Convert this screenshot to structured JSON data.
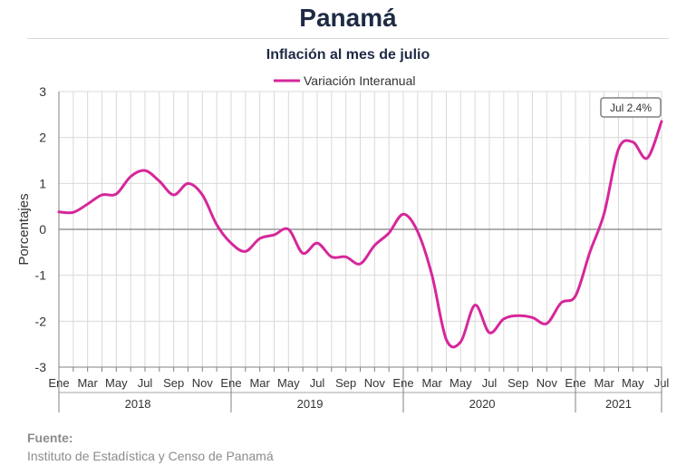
{
  "header": {
    "title": "Panamá",
    "subtitle": "Inflación al mes de julio"
  },
  "source": {
    "label": "Fuente:",
    "text": "Instituto de Estadística y Censo de Panamá"
  },
  "colors": {
    "series": "#d6279a",
    "grid": "#d9d9d9",
    "zero_line": "#808080",
    "title": "#1f2a44"
  },
  "chart_data": {
    "type": "line",
    "title": "Inflación al mes de julio",
    "ylabel": "Porcentajes",
    "ylim": [
      -3,
      3
    ],
    "yticks": [
      3,
      2,
      1,
      0,
      -1,
      -2,
      -3
    ],
    "grid": true,
    "legend_position": "top-center",
    "month_labels": [
      "Ene",
      "Mar",
      "May",
      "Jul",
      "Sep",
      "Nov"
    ],
    "years": [
      "2018",
      "2019",
      "2020",
      "2021"
    ],
    "x": [
      "2018-01",
      "2018-02",
      "2018-03",
      "2018-04",
      "2018-05",
      "2018-06",
      "2018-07",
      "2018-08",
      "2018-09",
      "2018-10",
      "2018-11",
      "2018-12",
      "2019-01",
      "2019-02",
      "2019-03",
      "2019-04",
      "2019-05",
      "2019-06",
      "2019-07",
      "2019-08",
      "2019-09",
      "2019-10",
      "2019-11",
      "2019-12",
      "2020-01",
      "2020-02",
      "2020-03",
      "2020-04",
      "2020-05",
      "2020-06",
      "2020-07",
      "2020-08",
      "2020-09",
      "2020-10",
      "2020-11",
      "2020-12",
      "2021-01",
      "2021-02",
      "2021-03",
      "2021-04",
      "2021-05",
      "2021-06",
      "2021-07"
    ],
    "series": [
      {
        "name": "Variación Interanual",
        "values": [
          0.38,
          0.37,
          0.55,
          0.75,
          0.77,
          1.15,
          1.28,
          1.05,
          0.75,
          1.0,
          0.75,
          0.1,
          -0.3,
          -0.48,
          -0.2,
          -0.12,
          0.0,
          -0.52,
          -0.3,
          -0.6,
          -0.6,
          -0.75,
          -0.35,
          -0.08,
          0.33,
          -0.05,
          -1.0,
          -2.4,
          -2.45,
          -1.65,
          -2.25,
          -1.95,
          -1.88,
          -1.92,
          -2.05,
          -1.6,
          -1.45,
          -0.5,
          0.35,
          1.75,
          1.9,
          1.55,
          2.35
        ]
      }
    ],
    "annotation": "Jul 2.4%"
  }
}
